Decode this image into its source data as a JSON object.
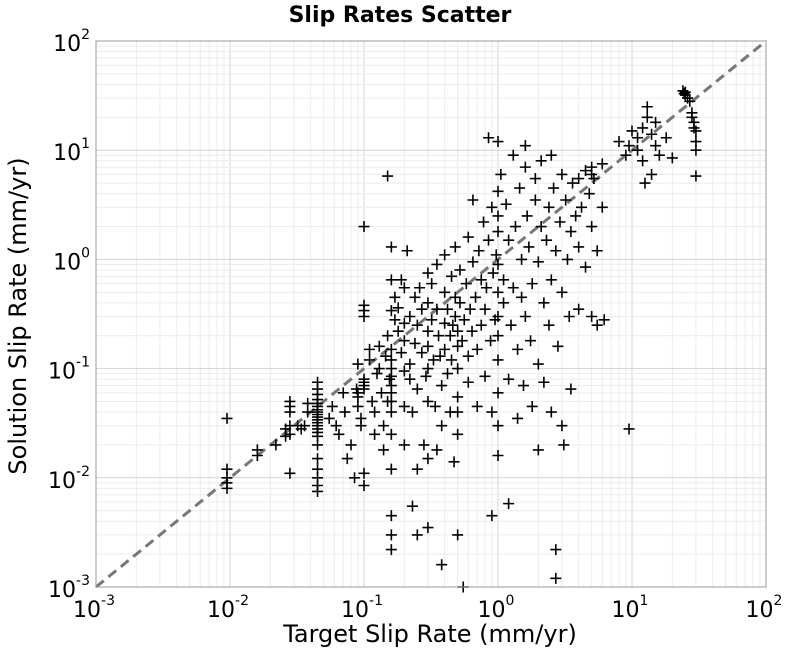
{
  "chart_data": {
    "type": "scatter",
    "title": "Slip Rates Scatter",
    "xlabel": "Target Slip Rate (mm/yr)",
    "ylabel": "Solution Slip Rate (mm/yr)",
    "xscale": "log",
    "yscale": "log",
    "xlim": [
      0.001,
      100
    ],
    "ylim": [
      0.001,
      100
    ],
    "grid": true,
    "x_ticks": [
      {
        "base": "10",
        "exp": "-3",
        "value": 0.001
      },
      {
        "base": "10",
        "exp": "-2",
        "value": 0.01
      },
      {
        "base": "10",
        "exp": "-1",
        "value": 0.1
      },
      {
        "base": "10",
        "exp": "0",
        "value": 1
      },
      {
        "base": "10",
        "exp": "1",
        "value": 10
      },
      {
        "base": "10",
        "exp": "2",
        "value": 100
      }
    ],
    "y_ticks": [
      {
        "base": "10",
        "exp": "-3",
        "value": 0.001
      },
      {
        "base": "10",
        "exp": "-2",
        "value": 0.01
      },
      {
        "base": "10",
        "exp": "-1",
        "value": 0.1
      },
      {
        "base": "10",
        "exp": "0",
        "value": 1
      },
      {
        "base": "10",
        "exp": "1",
        "value": 10
      },
      {
        "base": "10",
        "exp": "2",
        "value": 100
      }
    ],
    "reference_line": {
      "style": "dashed",
      "color": "#777777",
      "x": [
        0.001,
        100
      ],
      "y": [
        0.001,
        100
      ]
    },
    "marker": {
      "symbol": "+",
      "color": "#000000"
    },
    "points": [
      [
        0.0095,
        0.035
      ],
      [
        0.0095,
        0.012
      ],
      [
        0.0095,
        0.01
      ],
      [
        0.0095,
        0.009
      ],
      [
        0.0095,
        0.008
      ],
      [
        0.016,
        0.018
      ],
      [
        0.016,
        0.016
      ],
      [
        0.022,
        0.02
      ],
      [
        0.026,
        0.028
      ],
      [
        0.026,
        0.024
      ],
      [
        0.028,
        0.05
      ],
      [
        0.028,
        0.045
      ],
      [
        0.028,
        0.04
      ],
      [
        0.028,
        0.03
      ],
      [
        0.028,
        0.025
      ],
      [
        0.028,
        0.011
      ],
      [
        0.032,
        0.03
      ],
      [
        0.034,
        0.028
      ],
      [
        0.036,
        0.03
      ],
      [
        0.038,
        0.048
      ],
      [
        0.038,
        0.04
      ],
      [
        0.045,
        0.075
      ],
      [
        0.045,
        0.065
      ],
      [
        0.045,
        0.058
      ],
      [
        0.045,
        0.052
      ],
      [
        0.045,
        0.048
      ],
      [
        0.045,
        0.045
      ],
      [
        0.045,
        0.042
      ],
      [
        0.045,
        0.04
      ],
      [
        0.045,
        0.038
      ],
      [
        0.045,
        0.036
      ],
      [
        0.045,
        0.034
      ],
      [
        0.045,
        0.032
      ],
      [
        0.045,
        0.03
      ],
      [
        0.045,
        0.028
      ],
      [
        0.045,
        0.026
      ],
      [
        0.045,
        0.024
      ],
      [
        0.045,
        0.02
      ],
      [
        0.045,
        0.015
      ],
      [
        0.045,
        0.012
      ],
      [
        0.045,
        0.01
      ],
      [
        0.045,
        0.0085
      ],
      [
        0.045,
        0.0075
      ],
      [
        0.055,
        0.035
      ],
      [
        0.058,
        0.045
      ],
      [
        0.062,
        0.03
      ],
      [
        0.065,
        0.025
      ],
      [
        0.07,
        0.06
      ],
      [
        0.072,
        0.04
      ],
      [
        0.075,
        0.015
      ],
      [
        0.08,
        0.02
      ],
      [
        0.085,
        0.01
      ],
      [
        0.088,
        0.065
      ],
      [
        0.09,
        0.11
      ],
      [
        0.09,
        0.06
      ],
      [
        0.09,
        0.055
      ],
      [
        0.09,
        0.045
      ],
      [
        0.095,
        0.035
      ],
      [
        0.095,
        0.03
      ],
      [
        0.1,
        0.011
      ],
      [
        0.1,
        0.0085
      ],
      [
        0.1,
        0.08
      ],
      [
        0.1,
        0.075
      ],
      [
        0.1,
        0.07
      ],
      [
        0.1,
        0.065
      ],
      [
        0.1,
        0.34
      ],
      [
        0.1,
        0.3
      ],
      [
        0.1,
        0.38
      ],
      [
        0.1,
        2.0
      ],
      [
        0.11,
        0.15
      ],
      [
        0.11,
        0.12
      ],
      [
        0.115,
        0.05
      ],
      [
        0.12,
        0.04
      ],
      [
        0.12,
        0.025
      ],
      [
        0.125,
        0.09
      ],
      [
        0.13,
        0.16
      ],
      [
        0.13,
        0.1
      ],
      [
        0.135,
        0.06
      ],
      [
        0.14,
        0.03
      ],
      [
        0.14,
        0.018
      ],
      [
        0.145,
        0.13
      ],
      [
        0.15,
        5.8
      ],
      [
        0.15,
        0.2
      ],
      [
        0.15,
        0.05
      ],
      [
        0.155,
        0.08
      ],
      [
        0.16,
        1.3
      ],
      [
        0.16,
        0.65
      ],
      [
        0.16,
        0.34
      ],
      [
        0.16,
        0.15
      ],
      [
        0.16,
        0.12
      ],
      [
        0.16,
        0.1
      ],
      [
        0.16,
        0.085
      ],
      [
        0.16,
        0.07
      ],
      [
        0.16,
        0.06
      ],
      [
        0.16,
        0.05
      ],
      [
        0.16,
        0.04
      ],
      [
        0.16,
        0.025
      ],
      [
        0.16,
        0.012
      ],
      [
        0.16,
        0.0045
      ],
      [
        0.16,
        0.003
      ],
      [
        0.16,
        0.0022
      ],
      [
        0.17,
        0.45
      ],
      [
        0.17,
        0.28
      ],
      [
        0.18,
        0.36
      ],
      [
        0.18,
        0.22
      ],
      [
        0.19,
        0.65
      ],
      [
        0.19,
        0.14
      ],
      [
        0.2,
        0.55
      ],
      [
        0.2,
        0.26
      ],
      [
        0.2,
        0.18
      ],
      [
        0.2,
        0.095
      ],
      [
        0.2,
        0.045
      ],
      [
        0.2,
        0.02
      ],
      [
        0.21,
        1.2
      ],
      [
        0.22,
        0.3
      ],
      [
        0.22,
        0.11
      ],
      [
        0.22,
        0.08
      ],
      [
        0.23,
        0.04
      ],
      [
        0.23,
        0.0055
      ],
      [
        0.24,
        0.45
      ],
      [
        0.24,
        0.17
      ],
      [
        0.25,
        0.25
      ],
      [
        0.25,
        0.065
      ],
      [
        0.25,
        0.012
      ],
      [
        0.25,
        0.003
      ],
      [
        0.26,
        0.55
      ],
      [
        0.27,
        0.35
      ],
      [
        0.27,
        0.14
      ],
      [
        0.28,
        0.02
      ],
      [
        0.29,
        0.085
      ],
      [
        0.3,
        0.75
      ],
      [
        0.3,
        0.4
      ],
      [
        0.3,
        0.22
      ],
      [
        0.3,
        0.16
      ],
      [
        0.3,
        0.1
      ],
      [
        0.3,
        0.05
      ],
      [
        0.3,
        0.015
      ],
      [
        0.3,
        0.0035
      ],
      [
        0.32,
        0.6
      ],
      [
        0.32,
        0.28
      ],
      [
        0.33,
        0.12
      ],
      [
        0.34,
        0.045
      ],
      [
        0.35,
        0.9
      ],
      [
        0.35,
        0.35
      ],
      [
        0.35,
        0.018
      ],
      [
        0.36,
        0.2
      ],
      [
        0.37,
        0.13
      ],
      [
        0.38,
        0.07
      ],
      [
        0.38,
        0.03
      ],
      [
        0.38,
        0.0016
      ],
      [
        0.4,
        1.1
      ],
      [
        0.4,
        0.5
      ],
      [
        0.4,
        0.26
      ],
      [
        0.4,
        0.15
      ],
      [
        0.42,
        0.35
      ],
      [
        0.42,
        0.09
      ],
      [
        0.44,
        0.04
      ],
      [
        0.44,
        0.2
      ],
      [
        0.45,
        0.7
      ],
      [
        0.45,
        0.12
      ],
      [
        0.46,
        0.25
      ],
      [
        0.47,
        0.014
      ],
      [
        0.48,
        1.3
      ],
      [
        0.48,
        0.45
      ],
      [
        0.48,
        0.3
      ],
      [
        0.5,
        0.22
      ],
      [
        0.5,
        0.16
      ],
      [
        0.5,
        0.1
      ],
      [
        0.5,
        0.055
      ],
      [
        0.5,
        0.04
      ],
      [
        0.5,
        0.025
      ],
      [
        0.5,
        0.003
      ],
      [
        0.52,
        0.8
      ],
      [
        0.52,
        0.4
      ],
      [
        0.54,
        0.18
      ],
      [
        0.55,
        0.001
      ],
      [
        0.56,
        0.28
      ],
      [
        0.58,
        0.6
      ],
      [
        0.6,
        1.6
      ],
      [
        0.6,
        0.13
      ],
      [
        0.6,
        0.075
      ],
      [
        0.62,
        0.35
      ],
      [
        0.64,
        0.22
      ],
      [
        0.65,
        3.5
      ],
      [
        0.65,
        0.95
      ],
      [
        0.68,
        0.45
      ],
      [
        0.7,
        0.15
      ],
      [
        0.7,
        0.045
      ],
      [
        0.72,
        1.2
      ],
      [
        0.75,
        0.65
      ],
      [
        0.75,
        0.25
      ],
      [
        0.78,
        2.2
      ],
      [
        0.8,
        0.35
      ],
      [
        0.8,
        0.085
      ],
      [
        0.82,
        0.55
      ],
      [
        0.85,
        1.5
      ],
      [
        0.85,
        13
      ],
      [
        0.88,
        0.18
      ],
      [
        0.9,
        0.04
      ],
      [
        0.9,
        0.0045
      ],
      [
        0.9,
        3.0
      ],
      [
        0.92,
        0.75
      ],
      [
        0.95,
        0.28
      ],
      [
        0.97,
        1.1
      ],
      [
        1.0,
        12
      ],
      [
        1.0,
        4.2
      ],
      [
        1.0,
        2.5
      ],
      [
        1.0,
        1.8
      ],
      [
        1.0,
        0.9
      ],
      [
        1.0,
        0.5
      ],
      [
        1.0,
        0.3
      ],
      [
        1.0,
        0.2
      ],
      [
        1.0,
        0.12
      ],
      [
        1.0,
        0.06
      ],
      [
        1.0,
        0.03
      ],
      [
        1.0,
        0.016
      ],
      [
        1.05,
        6.0
      ],
      [
        1.1,
        0.65
      ],
      [
        1.1,
        0.4
      ],
      [
        1.15,
        3.2
      ],
      [
        1.2,
        1.5
      ],
      [
        1.2,
        0.08
      ],
      [
        1.2,
        0.0058
      ],
      [
        1.25,
        0.25
      ],
      [
        1.3,
        9.0
      ],
      [
        1.3,
        0.55
      ],
      [
        1.35,
        2.0
      ],
      [
        1.4,
        0.15
      ],
      [
        1.4,
        0.035
      ],
      [
        1.45,
        4.5
      ],
      [
        1.5,
        1.0
      ],
      [
        1.5,
        0.45
      ],
      [
        1.55,
        0.07
      ],
      [
        1.6,
        11
      ],
      [
        1.6,
        7.0
      ],
      [
        1.6,
        0.3
      ],
      [
        1.65,
        2.5
      ],
      [
        1.7,
        1.3
      ],
      [
        1.75,
        0.18
      ],
      [
        1.8,
        0.6
      ],
      [
        1.8,
        0.045
      ],
      [
        1.9,
        5.5
      ],
      [
        1.9,
        3.5
      ],
      [
        2.0,
        0.95
      ],
      [
        2.0,
        0.11
      ],
      [
        2.0,
        0.018
      ],
      [
        2.1,
        8.0
      ],
      [
        2.1,
        2.0
      ],
      [
        2.2,
        0.4
      ],
      [
        2.2,
        0.075
      ],
      [
        2.3,
        1.5
      ],
      [
        2.4,
        3.0
      ],
      [
        2.4,
        0.25
      ],
      [
        2.5,
        9.0
      ],
      [
        2.5,
        0.65
      ],
      [
        2.5,
        0.04
      ],
      [
        2.6,
        4.5
      ],
      [
        2.7,
        1.2
      ],
      [
        2.7,
        0.0022
      ],
      [
        2.7,
        0.0012
      ],
      [
        2.8,
        0.16
      ],
      [
        2.9,
        2.2
      ],
      [
        3.0,
        6.0
      ],
      [
        3.0,
        0.5
      ],
      [
        3.0,
        0.03
      ],
      [
        3.1,
        0.02
      ],
      [
        3.2,
        3.5
      ],
      [
        3.3,
        1.0
      ],
      [
        3.4,
        0.3
      ],
      [
        3.5,
        1.8
      ],
      [
        3.5,
        0.065
      ],
      [
        3.6,
        5.0
      ],
      [
        3.8,
        2.5
      ],
      [
        4.0,
        5.5
      ],
      [
        4.0,
        1.3
      ],
      [
        4.0,
        0.35
      ],
      [
        4.2,
        3.0
      ],
      [
        4.5,
        6.5
      ],
      [
        4.5,
        0.85
      ],
      [
        4.8,
        4.0
      ],
      [
        5.0,
        7.0
      ],
      [
        5.0,
        6.0
      ],
      [
        5.0,
        2.0
      ],
      [
        5.0,
        0.3
      ],
      [
        5.2,
        5.5
      ],
      [
        5.5,
        1.2
      ],
      [
        5.5,
        0.25
      ],
      [
        6.0,
        7.5
      ],
      [
        6.0,
        3.0
      ],
      [
        6.2,
        0.28
      ],
      [
        8.0,
        12
      ],
      [
        9.0,
        9.0
      ],
      [
        9.5,
        11
      ],
      [
        9.5,
        0.028
      ],
      [
        10,
        15
      ],
      [
        11,
        13
      ],
      [
        11,
        10
      ],
      [
        12,
        16
      ],
      [
        12,
        8.0
      ],
      [
        12.5,
        5.0
      ],
      [
        13,
        25
      ],
      [
        13,
        20
      ],
      [
        14,
        14
      ],
      [
        14,
        6.0
      ],
      [
        15,
        18
      ],
      [
        15,
        11
      ],
      [
        16,
        9.0
      ],
      [
        18,
        13
      ],
      [
        20,
        8.5
      ],
      [
        24,
        35
      ],
      [
        24.5,
        33
      ],
      [
        25,
        34
      ],
      [
        25,
        32
      ],
      [
        26,
        30
      ],
      [
        27,
        28
      ],
      [
        28,
        22
      ],
      [
        28,
        20
      ],
      [
        29,
        18
      ],
      [
        29,
        16
      ],
      [
        30,
        15
      ],
      [
        30,
        12
      ],
      [
        30,
        10
      ],
      [
        30,
        5.8
      ]
    ]
  }
}
